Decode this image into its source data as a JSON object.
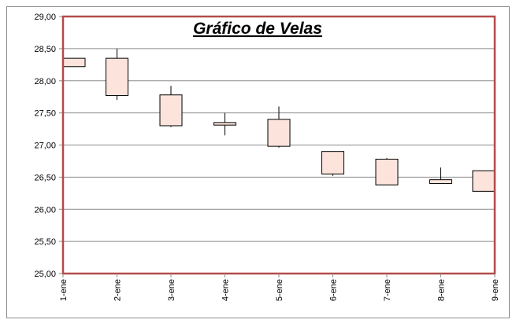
{
  "chart_data": {
    "type": "candlestick",
    "title": "Gráfico de Velas",
    "categories": [
      "1-ene",
      "2-ene",
      "3-ene",
      "4-ene",
      "5-ene",
      "6-ene",
      "7-ene",
      "8-ene",
      "9-ene"
    ],
    "y_tick_labels": [
      "25,00",
      "25,50",
      "26,00",
      "26,50",
      "27,00",
      "27,50",
      "28,00",
      "28,50",
      "29,00"
    ],
    "ylim": [
      25,
      29
    ],
    "grid": true,
    "legend": "none",
    "series": [
      {
        "open": [
          28.22,
          28.35,
          27.78,
          27.35,
          27.4,
          26.9,
          26.78,
          26.4,
          26.28
        ],
        "high": [
          28.65,
          28.5,
          27.92,
          27.5,
          27.6,
          26.9,
          26.8,
          26.65,
          26.6
        ],
        "low": [
          28.1,
          27.7,
          27.28,
          27.15,
          26.96,
          26.52,
          26.38,
          26.4,
          26.28
        ],
        "close": [
          28.35,
          27.77,
          27.3,
          27.31,
          26.98,
          26.55,
          26.38,
          26.46,
          26.6
        ]
      }
    ],
    "colors": {
      "candle_fill": "#fce4dc",
      "candle_stroke": "#000000",
      "plot_border": "#b54a4a",
      "gridline": "#8c8c8c"
    }
  }
}
